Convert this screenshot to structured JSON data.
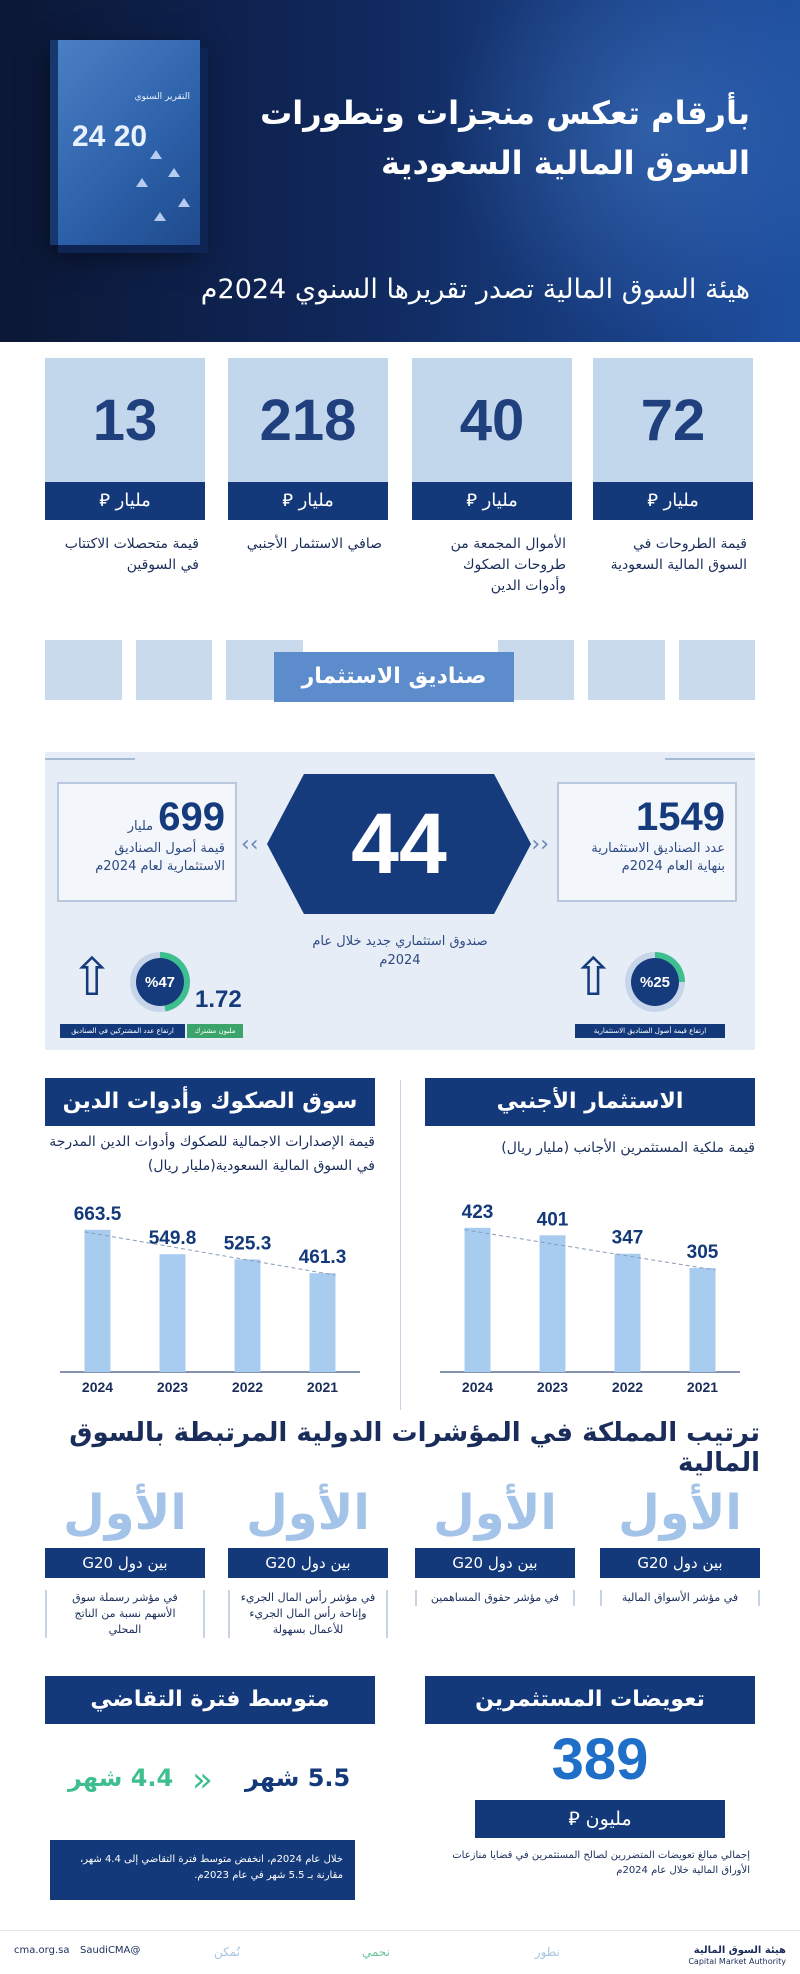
{
  "header": {
    "title_line1": "بأرقام تعكس منجزات وتطورات",
    "title_line2": "السوق المالية السعودية",
    "subtitle": "هيئة السوق المالية تصدر تقريرها السنوي 2024م",
    "book_year": "20 24",
    "book_title": "التقرير السنوي"
  },
  "stats": [
    {
      "value": "72",
      "unit": "مليار ⃁",
      "desc": "قيمة الطروحات في السوق المالية السعودية"
    },
    {
      "value": "40",
      "unit": "مليار ⃁",
      "desc": "الأموال المجمعة من طروحات الصكوك وأدوات الدين"
    },
    {
      "value": "218",
      "unit": "مليار ⃁",
      "desc": "صافي الاستثمار الأجنبي"
    },
    {
      "value": "13",
      "unit": "مليار ⃁",
      "desc": "قيمة متحصلات الاكتتاب في السوقين"
    }
  ],
  "funds": {
    "title": "صناديق الاستثمار",
    "new_funds_value": "44",
    "new_funds_label": "صندوق استثماري جديد خلال عام 2024م",
    "count_value": "1549",
    "count_label": "عدد الصناديق الاستثمارية بنهاية العام 2024م",
    "assets_value": "699",
    "assets_unit": "مليار",
    "assets_label": "قيمة أصول الصناديق الاستثمارية لعام 2024م",
    "pct_right": "%25",
    "pct_left": "%47",
    "value_172": "1.72",
    "tag_right": "ارتفاع قيمة أصول الصناديق الاستثمارية",
    "tag_left_blue": "ارتفاع عدد المشتركين في الصناديق",
    "tag_left_green": "مليون مشترك"
  },
  "foreign": {
    "title": "الاستثمار الأجنبي",
    "subtitle": "قيمة ملكية المستثمرين الأجانب (مليار ريال)"
  },
  "sukuk": {
    "title": "سوق الصكوك وأدوات الدين",
    "subtitle": "قيمة الإصدارات الاجمالية للصكوك وأدوات الدين المدرجة في السوق المالية السعودية(مليار ريال)"
  },
  "chart_data": [
    {
      "type": "bar",
      "categories": [
        "2024",
        "2023",
        "2022",
        "2021"
      ],
      "values": [
        423,
        401,
        347,
        305
      ],
      "title": "الاستثمار الأجنبي",
      "ylabel": "",
      "ylim": [
        0,
        440
      ]
    },
    {
      "type": "bar",
      "categories": [
        "2024",
        "2023",
        "2022",
        "2021"
      ],
      "values": [
        663.5,
        549.8,
        525.3,
        461.3
      ],
      "title": "سوق الصكوك وأدوات الدين",
      "ylabel": "",
      "ylim": [
        0,
        700
      ]
    }
  ],
  "ranking": {
    "title": "ترتيب المملكة في المؤشرات الدولية المرتبطة بالسوق المالية",
    "items": [
      {
        "rank": "الأول",
        "group": "بين دول G20",
        "desc": "في مؤشر الأسواق المالية"
      },
      {
        "rank": "الأول",
        "group": "بين دول G20",
        "desc": "في مؤشر حقوق المساهمين"
      },
      {
        "rank": "الأول",
        "group": "بين دول G20",
        "desc": "في مؤشر رأس المال الجريء وإتاحة رأس المال الجريء للأعمال بسهولة"
      },
      {
        "rank": "الأول",
        "group": "بين دول G20",
        "desc": "في مؤشر رسملة سوق الأسهم نسبة من الناتج المحلي"
      }
    ]
  },
  "compensation": {
    "title": "تعويضات المستثمرين",
    "value": "389",
    "unit": "مليون ⃁",
    "desc": "إجمالي مبالغ تعويضات المتضررين لصالح المستثمرين في قضايا منازعات الأوراق المالية خلال عام 2024م"
  },
  "litigation": {
    "title": "متوسط فترة التقاضي",
    "from": "5.5 شهر",
    "to": "4.4 شهر",
    "desc": "خلال عام 2024م، انخفض متوسط فترة التقاضي إلى 4.4 شهر، مقارنة بـ 5.5 شهر في عام 2023م."
  },
  "footer": {
    "org_ar": "هيئة السوق المالية",
    "org_en": "Capital Market Authority",
    "p1": "نطور",
    "p2": "نحمي",
    "p3": "نُمكن",
    "handle": "@SaudiCMA",
    "site": "cma.org.sa"
  },
  "colors": {
    "navy": "#14397a",
    "light_blue": "#c2d6ec",
    "bar": "#a8ccf0",
    "accent_green": "#3fbf8f"
  }
}
